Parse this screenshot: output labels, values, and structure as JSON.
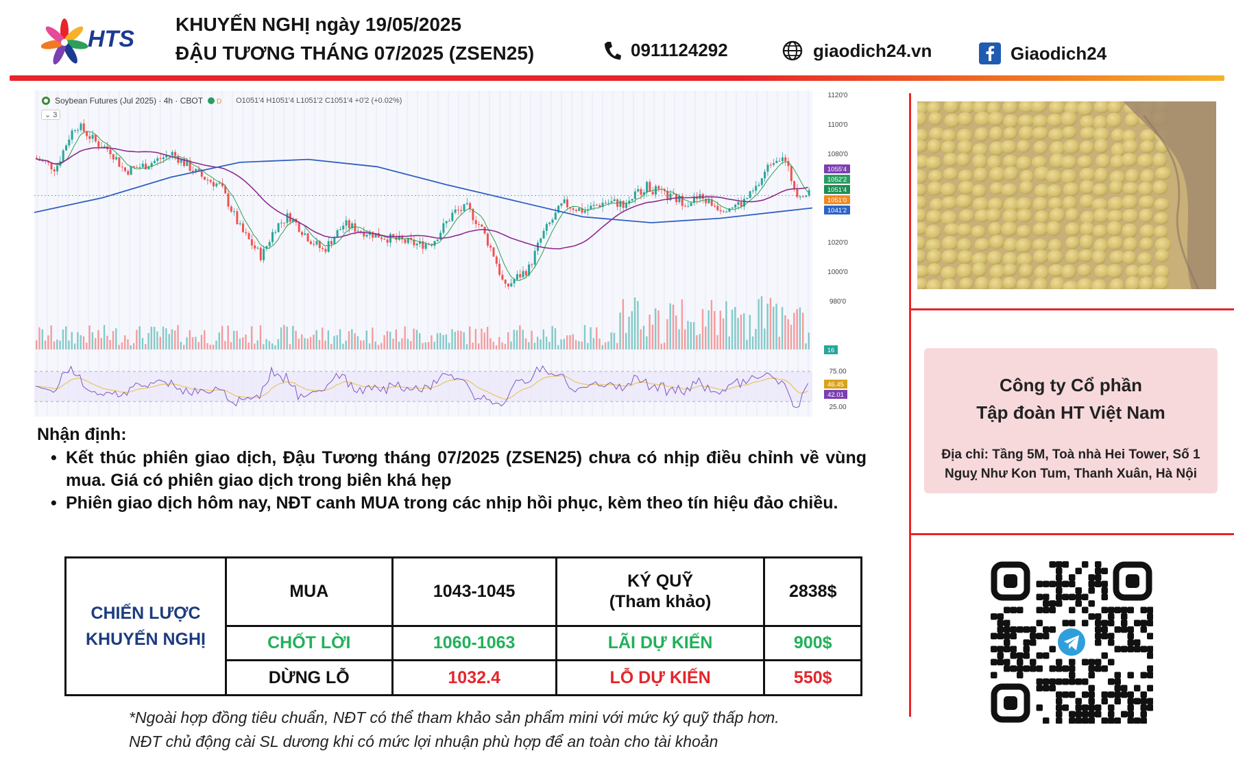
{
  "header": {
    "brand": "HTS",
    "title_line1": "KHUYẾN NGHỊ ngày 19/05/2025",
    "title_line2": "ĐẬU TƯƠNG THÁNG 07/2025 (ZSEN25)",
    "phone": "0911124292",
    "website": "giaodich24.vn",
    "facebook": "Giaodich24"
  },
  "chart": {
    "symbol_text": "Soybean Futures (Jul 2025) · 4h · CBOT",
    "ohlc_text": "O1051'4 H1051'4 L1051'2 C1051'4 +0'2 (+0.02%)",
    "collapse_label": "3",
    "price_ticks": [
      "1120'0",
      "1100'0",
      "1080'0",
      "1020'0",
      "1000'0",
      "980'0"
    ],
    "price_labels": [
      {
        "text": "1055'4",
        "color": "#7b3fb1",
        "value": 1055.5
      },
      {
        "text": "1052'2",
        "color": "#2a9d62",
        "value": 1052.25
      },
      {
        "text": "1051'4",
        "color": "#1e8e55",
        "value": 1051.5
      },
      {
        "text": "1051'0",
        "color": "#f08a24",
        "value": 1051
      },
      {
        "text": "1041'2",
        "color": "#2c63c8",
        "value": 1041.25
      }
    ],
    "volume_label": "16",
    "rsi_ticks": [
      "75.00",
      "25.00"
    ],
    "rsi_labels": [
      {
        "text": "46.45",
        "color": "#d9a21b"
      },
      {
        "text": "42.01",
        "color": "#7b3fb1"
      }
    ],
    "colors": {
      "up": "#26a69a",
      "down": "#ef5350",
      "ma_fast": "#2e9e4f",
      "ma_mid": "#8e2a8e",
      "ma_slow": "#2f5fbf",
      "rsi": "#7e57c2",
      "rsi_ma": "#e6c75a"
    }
  },
  "analysis": {
    "title": "Nhận định:",
    "bullets": [
      "Kết thúc phiên giao dịch, Đậu Tương tháng 07/2025 (ZSEN25) chưa có nhịp điều chỉnh về vùng mua. Giá có phiên giao dịch trong biên khá hẹp",
      "Phiên giao dịch hôm nay, NĐT canh MUA trong các nhịp hồi phục, kèm theo tín hiệu đảo chiều."
    ]
  },
  "strategy": {
    "label_line1": "CHIẾN LƯỢC",
    "label_line2": "KHUYẾN NGHỊ",
    "rows": [
      {
        "action": "MUA",
        "price": "1043-1045",
        "metric_line1": "KÝ QUỸ",
        "metric_line2": "(Tham khảo)",
        "value": "2838$"
      },
      {
        "action": "CHỐT LỜI",
        "price": "1060-1063",
        "metric_line1": "LÃI DỰ KIẾN",
        "metric_line2": "",
        "value": "900$"
      },
      {
        "action": "DỪNG LỖ",
        "price": "1032.4",
        "metric_line1": "LỖ DỰ KIẾN",
        "metric_line2": "",
        "value": "550$"
      }
    ]
  },
  "footnote": {
    "line1": "*Ngoài hợp đồng tiêu chuẩn, NĐT có thể tham khảo sản phẩm mini với mức ký quỹ thấp hơn.",
    "line2": "NĐT chủ động cài SL dương khi có mức lợi nhuận phù hợp để an toàn cho tài khoản"
  },
  "company": {
    "name_line1": "Công ty Cổ phần",
    "name_line2": "Tập đoàn HT Việt Nam",
    "address_line1": "Địa chỉ: Tầng 5M, Toà nhà Hei Tower, Số 1",
    "address_line2": "Nguỵ Như Kon Tum, Thanh Xuân, Hà Nội"
  },
  "icons": [
    "hts-logo-icon",
    "phone-icon",
    "globe-icon",
    "facebook-icon",
    "telegram-icon",
    "qr-code-icon",
    "soybeans-photo"
  ]
}
